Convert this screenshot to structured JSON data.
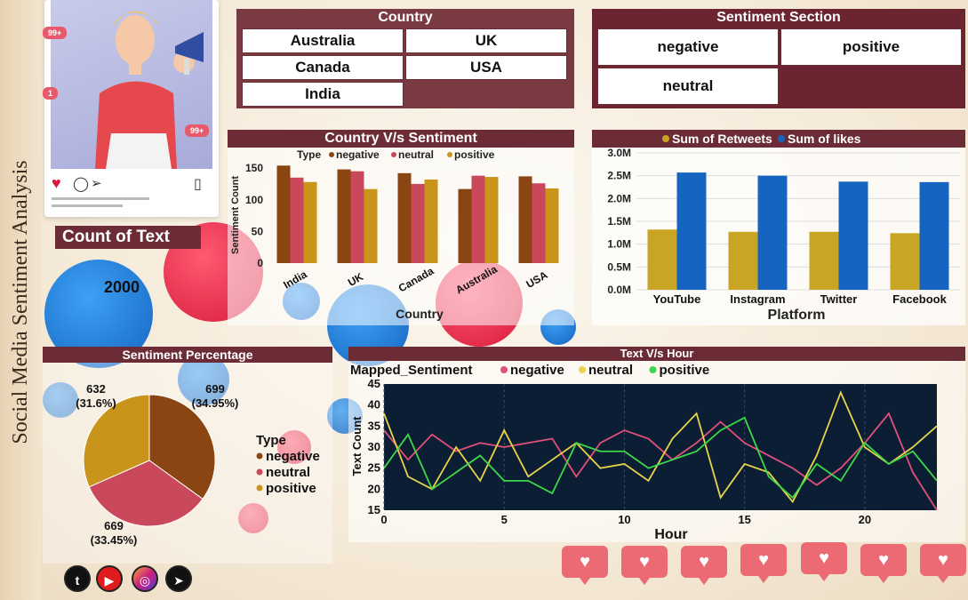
{
  "title": "Social Media Sentiment Analysis",
  "insta_card": {
    "badge_top": "99+",
    "badge_mid": "1",
    "badge_bottom": "99+",
    "colors": {
      "badge": "#e85a6b"
    }
  },
  "country_slicer": {
    "title": "Country",
    "items": [
      "Australia",
      "UK",
      "Canada",
      "USA",
      "India"
    ]
  },
  "sentiment_slicer": {
    "title": "Sentiment Section",
    "items": [
      "negative",
      "positive",
      "neutral"
    ]
  },
  "count_of_text": {
    "title": "Count of Text",
    "value": "2000"
  },
  "social_icons": [
    "twitter-icon",
    "youtube-icon",
    "instagram-icon",
    "telegram-icon"
  ],
  "colors": {
    "header": "#6b2c35",
    "negative": "#8b4513",
    "neutral": "#c9485b",
    "positive": "#c8951a",
    "retweets": "#c9a524",
    "likes": "#1565c0",
    "line_negative": "#e0507a",
    "line_neutral": "#e8d44a",
    "line_positive": "#3dd84a"
  },
  "chart_data": [
    {
      "type": "bar",
      "title": "Country V/s Sentiment",
      "legend_title": "Type",
      "categories": [
        "India",
        "UK",
        "Canada",
        "Australia",
        "USA"
      ],
      "series": [
        {
          "name": "negative",
          "values": [
            154,
            148,
            142,
            117,
            137
          ]
        },
        {
          "name": "neutral",
          "values": [
            135,
            145,
            125,
            138,
            126
          ]
        },
        {
          "name": "positive",
          "values": [
            128,
            117,
            132,
            136,
            118
          ]
        }
      ],
      "xlabel": "Country",
      "ylabel": "Sentiment Count",
      "ylim": [
        0,
        160
      ],
      "yticks": [
        "0",
        "50",
        "100",
        "150"
      ],
      "legend": "top"
    },
    {
      "type": "bar",
      "categories": [
        "YouTube",
        "Instagram",
        "Twitter",
        "Facebook"
      ],
      "series": [
        {
          "name": "Sum of Retweets",
          "values": [
            1.32,
            1.27,
            1.27,
            1.24
          ]
        },
        {
          "name": "Sum of likes",
          "values": [
            2.57,
            2.5,
            2.37,
            2.36
          ]
        }
      ],
      "xlabel": "Platform",
      "ylabel": "",
      "ylim": [
        0,
        3.0
      ],
      "yticks": [
        "0.0M",
        "0.5M",
        "1.0M",
        "1.5M",
        "2.0M",
        "2.5M",
        "3.0M"
      ],
      "legend": "top"
    },
    {
      "type": "pie",
      "title": "Sentiment Percentage",
      "legend_title": "Type",
      "labels": [
        "negative",
        "neutral",
        "positive"
      ],
      "values": [
        699,
        669,
        632
      ],
      "value_labels": [
        "699\n(34.95%)",
        "669\n(33.45%)",
        "632\n(31.6%)"
      ],
      "legend": "right"
    },
    {
      "type": "line",
      "title": "Text V/s Hour",
      "legend_title": "Mapped_Sentiment",
      "x": [
        0,
        1,
        2,
        3,
        4,
        5,
        6,
        7,
        8,
        9,
        10,
        11,
        12,
        13,
        14,
        15,
        16,
        17,
        18,
        19,
        20,
        21,
        22,
        23
      ],
      "series": [
        {
          "name": "negative",
          "values": [
            34,
            27,
            33,
            29,
            31,
            30,
            31,
            32,
            23,
            31,
            34,
            32,
            27,
            31,
            36,
            31,
            28,
            25,
            21,
            25,
            31,
            38,
            24,
            14
          ]
        },
        {
          "name": "neutral",
          "values": [
            38,
            23,
            20,
            30,
            22,
            34,
            23,
            27,
            31,
            25,
            26,
            22,
            32,
            38,
            18,
            26,
            24,
            17,
            28,
            43,
            30,
            26,
            30,
            35
          ]
        },
        {
          "name": "positive",
          "values": [
            25,
            33,
            20,
            24,
            28,
            22,
            22,
            19,
            31,
            29,
            29,
            25,
            27,
            29,
            34,
            37,
            23,
            18,
            26,
            22,
            31,
            26,
            29,
            22
          ]
        }
      ],
      "xlabel": "Hour",
      "ylabel": "Text Count",
      "xlim": [
        0,
        23
      ],
      "ylim": [
        15,
        45
      ],
      "xticks": [
        "0",
        "5",
        "10",
        "15",
        "20"
      ],
      "yticks": [
        "15",
        "20",
        "25",
        "30",
        "35",
        "40",
        "45"
      ],
      "grid": true,
      "legend": "top"
    }
  ]
}
